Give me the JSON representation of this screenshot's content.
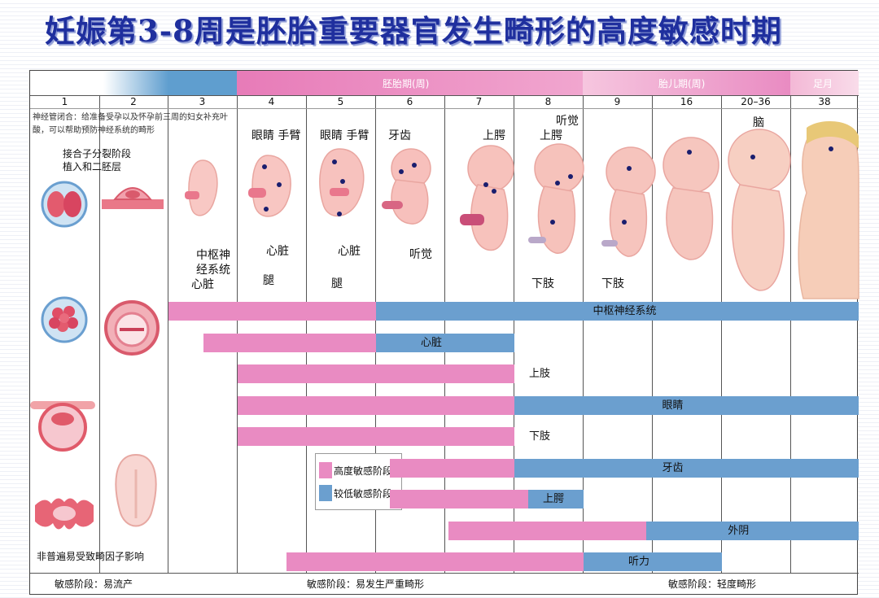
{
  "title": "妊娠第3-8周是胚胎重要器官发生畸形的高度敏感时期",
  "header": {
    "embryo_period": "胚胎期(周)",
    "fetal_period": "胎儿期(周)",
    "term": "足月"
  },
  "weeks": [
    "1",
    "2",
    "3",
    "4",
    "5",
    "6",
    "7",
    "8",
    "9",
    "16",
    "20–36",
    "38"
  ],
  "notes": {
    "neural_tube": "神经管闭合：给准备受孕以及怀孕前三周的妇女补充叶酸，可以帮助预防神经系统的畸形",
    "stage_line1": "接合子分裂阶段",
    "stage_line2": "植入和二胚层",
    "insensitive": "非普遍易受致畸因子影响"
  },
  "organ_labels": {
    "w3_cns_line1": "中枢神",
    "w3_cns_line2": "经系统",
    "w3_heart": "心脏",
    "w4_eyes_hands": "眼睛 手臂",
    "w4_heart": "心脏",
    "w4_leg": "腿",
    "w5_eyes_hands": "眼睛 手臂",
    "w5_heart": "心脏",
    "w5_leg": "腿",
    "w6_teeth": "牙齿",
    "w6_hearing": "听觉",
    "w7_lip": "上腭",
    "w8_hearing": "听觉",
    "w8_lip": "上腭",
    "w8_lowerlimb": "下肢",
    "w9_lowerlimb": "下肢",
    "w38_brain": "脑"
  },
  "chart_data": {
    "type": "gantt",
    "weeks": [
      "1",
      "2",
      "3",
      "4",
      "5",
      "6",
      "7",
      "8",
      "9",
      "16",
      "20–36",
      "38"
    ],
    "series": [
      {
        "organ": "中枢神经系统",
        "high_start": "3",
        "high_end": "6",
        "low_end": "38"
      },
      {
        "organ": "心脏",
        "high_start": "3",
        "high_end": "6",
        "low_end": "8"
      },
      {
        "organ": "上肢",
        "high_start": "4",
        "high_end": "8",
        "low_end": "8"
      },
      {
        "organ": "眼睛",
        "high_start": "4",
        "high_end": "8",
        "low_end": "38"
      },
      {
        "organ": "下肢",
        "high_start": "4",
        "high_end": "8",
        "low_end": "8"
      },
      {
        "organ": "牙齿",
        "high_start": "6",
        "high_end": "8",
        "low_end": "38"
      },
      {
        "organ": "上腭",
        "high_start": "6",
        "high_end": "8",
        "low_end": "9"
      },
      {
        "organ": "外阴",
        "high_start": "7",
        "high_end": "9",
        "low_end": "38"
      },
      {
        "organ": "听力",
        "high_start": "4",
        "high_end": "9",
        "low_end": "20–36"
      }
    ],
    "legend": [
      "高度敏感阶段",
      "较低敏感阶段"
    ],
    "colors": {
      "high": "#e98bc2",
      "low": "#6b9fcf"
    }
  },
  "footer": {
    "stage1": "敏感阶段：易流产",
    "stage2": "敏感阶段：易发生严重畸形",
    "stage3": "敏感阶段：轻度畸形"
  }
}
